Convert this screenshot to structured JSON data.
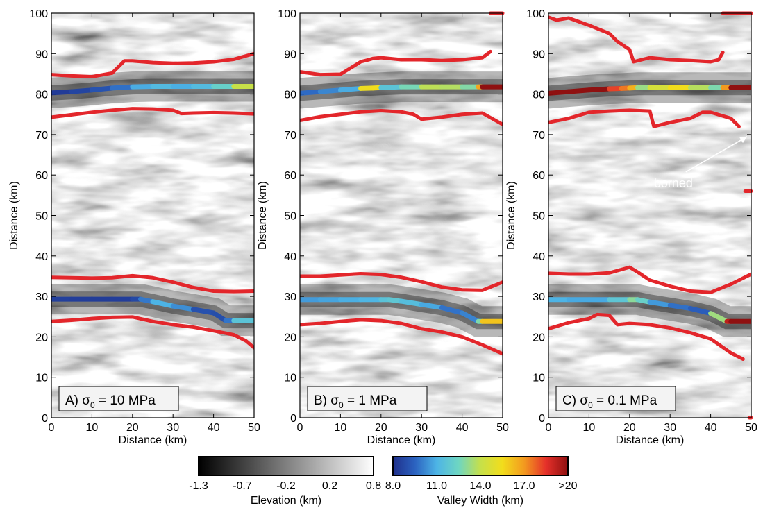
{
  "chart_data": [
    {
      "type": "heatmap",
      "panel_label": "A) σ",
      "panel_sub": "0",
      "panel_value": " = 10 MPa",
      "xlabel": "Distance (km)",
      "ylabel": "Distance (km)",
      "xlim": [
        0,
        50
      ],
      "ylim": [
        0,
        100
      ],
      "xticks": [
        "0",
        "10",
        "20",
        "30",
        "40",
        "50"
      ],
      "yticks": [
        "0",
        "10",
        "20",
        "30",
        "40",
        "50",
        "60",
        "70",
        "80",
        "90",
        "100"
      ],
      "valley_centerlines": [
        {
          "x": [
            0,
            5,
            10,
            15,
            20,
            25,
            30,
            35,
            40,
            45,
            50
          ],
          "y": [
            80.3,
            80.6,
            81.0,
            81.5,
            81.8,
            81.9,
            81.9,
            81.9,
            81.9,
            81.9,
            81.9
          ],
          "width_km": [
            8.2,
            8.5,
            8.8,
            9.3,
            10.2,
            11.5,
            11.0,
            10.8,
            11.8,
            12.6,
            15.5
          ]
        },
        {
          "x": [
            0,
            5,
            10,
            15,
            20,
            22,
            25,
            30,
            35,
            40,
            43,
            45,
            50
          ],
          "y": [
            29.3,
            29.3,
            29.3,
            29.3,
            29.3,
            29.3,
            28.7,
            27.6,
            26.8,
            25.9,
            24.0,
            24.0,
            24.0
          ],
          "width_km": [
            8.5,
            8.5,
            8.4,
            8.4,
            8.5,
            9.0,
            10.8,
            11.2,
            9.4,
            8.6,
            9.2,
            10.5,
            12.8
          ]
        }
      ],
      "divides": [
        {
          "x": [
            0,
            5,
            10,
            15,
            17,
            18,
            20,
            25,
            30,
            35,
            40,
            45,
            50
          ],
          "y": [
            84.8,
            84.5,
            84.3,
            85.2,
            87.2,
            88.2,
            88.2,
            87.8,
            87.6,
            87.7,
            88.0,
            88.6,
            90.0
          ]
        },
        {
          "x": [
            0,
            5,
            10,
            15,
            20,
            25,
            30,
            32,
            35,
            40,
            45,
            50
          ],
          "y": [
            74.3,
            74.9,
            75.5,
            76.0,
            76.4,
            76.3,
            76.0,
            75.2,
            75.3,
            75.4,
            75.3,
            75.1
          ]
        },
        {
          "x": [
            0,
            5,
            10,
            15,
            20,
            25,
            30,
            35,
            40,
            45,
            50
          ],
          "y": [
            34.7,
            34.6,
            34.5,
            34.6,
            35.1,
            34.6,
            33.5,
            32.2,
            31.3,
            31.2,
            31.3
          ]
        },
        {
          "x": [
            0,
            5,
            10,
            15,
            20,
            25,
            30,
            35,
            40,
            45,
            48,
            50
          ],
          "y": [
            23.8,
            24.1,
            24.5,
            24.8,
            24.9,
            23.8,
            23.0,
            22.4,
            21.5,
            20.5,
            19.0,
            17.3
          ]
        }
      ]
    },
    {
      "type": "heatmap",
      "panel_label": "B) σ",
      "panel_sub": "0",
      "panel_value": " = 1 MPa",
      "xlabel": "Distance (km)",
      "ylabel": "Distance (km)",
      "xlim": [
        0,
        50
      ],
      "ylim": [
        0,
        100
      ],
      "xticks": [
        "0",
        "10",
        "20",
        "30",
        "40",
        "50"
      ],
      "yticks": [
        "0",
        "10",
        "20",
        "30",
        "40",
        "50",
        "60",
        "70",
        "80",
        "90",
        "100"
      ],
      "valley_centerlines": [
        {
          "x": [
            0,
            5,
            10,
            15,
            18,
            20,
            25,
            30,
            35,
            40,
            44,
            45,
            50
          ],
          "y": [
            80.2,
            80.6,
            81.0,
            81.4,
            81.5,
            81.6,
            81.8,
            81.8,
            81.8,
            81.8,
            81.8,
            81.8,
            81.8
          ],
          "width_km": [
            9.5,
            9.8,
            10.5,
            11.2,
            19.5,
            11.5,
            11.8,
            13.5,
            14.2,
            13.2,
            12.5,
            21.0,
            22.0
          ]
        },
        {
          "x": [
            0,
            5,
            10,
            15,
            20,
            22,
            25,
            30,
            35,
            40,
            44,
            45,
            50
          ],
          "y": [
            29.2,
            29.2,
            29.2,
            29.2,
            29.2,
            29.2,
            28.8,
            28.0,
            27.2,
            25.9,
            23.8,
            23.8,
            23.8
          ],
          "width_km": [
            10.5,
            10.6,
            10.8,
            11.0,
            11.2,
            12.0,
            11.6,
            11.2,
            10.4,
            9.2,
            11.0,
            14.6,
            17.5
          ]
        }
      ],
      "divides": [
        {
          "x": [
            0,
            5,
            10,
            15,
            17,
            18,
            20,
            25,
            30,
            35,
            40,
            45,
            47
          ],
          "y": [
            85.5,
            84.8,
            84.9,
            88.0,
            88.5,
            88.8,
            89.0,
            88.5,
            88.5,
            88.3,
            88.5,
            89.0,
            90.5
          ]
        },
        {
          "x": [
            0,
            5,
            10,
            15,
            20,
            25,
            28,
            30,
            35,
            40,
            45,
            50
          ],
          "y": [
            73.5,
            74.4,
            75.0,
            75.6,
            75.9,
            75.6,
            75.0,
            73.8,
            74.3,
            75.0,
            75.3,
            72.5
          ]
        },
        {
          "x": [
            0,
            5,
            10,
            15,
            20,
            25,
            30,
            35,
            40,
            45,
            50
          ],
          "y": [
            35.0,
            35.0,
            35.3,
            35.6,
            35.4,
            34.7,
            33.6,
            32.3,
            31.6,
            31.5,
            33.5
          ]
        },
        {
          "x": [
            0,
            5,
            10,
            15,
            20,
            25,
            30,
            35,
            40,
            45,
            50
          ],
          "y": [
            23.0,
            23.3,
            23.8,
            24.2,
            24.0,
            23.3,
            22.0,
            21.2,
            20.0,
            18.0,
            15.8
          ]
        }
      ],
      "markers": [
        {
          "x": [
            47,
            50
          ],
          "y": [
            100,
            100
          ]
        }
      ]
    },
    {
      "type": "heatmap",
      "panel_label": "C) σ",
      "panel_sub": "0",
      "panel_value": " = 0.1 MPa",
      "xlabel": "Distance (km)",
      "ylabel": "Distance (km)",
      "xlim": [
        0,
        50
      ],
      "ylim": [
        0,
        100
      ],
      "xticks": [
        "0",
        "10",
        "20",
        "30",
        "40",
        "50"
      ],
      "yticks": [
        "0",
        "10",
        "20",
        "30",
        "40",
        "50",
        "60",
        "70",
        "80",
        "90",
        "100"
      ],
      "annotation": {
        "text": "borned",
        "xy": [
          49,
          69.5
        ],
        "xytext": [
          26,
          58
        ]
      },
      "valley_centerlines": [
        {
          "x": [
            0,
            5,
            10,
            15,
            18,
            20,
            22,
            25,
            30,
            35,
            40,
            43,
            45,
            50
          ],
          "y": [
            80.2,
            80.6,
            81.0,
            81.3,
            81.4,
            81.5,
            81.6,
            81.6,
            81.6,
            81.6,
            81.6,
            81.6,
            81.6,
            81.6
          ],
          "width_km": [
            21.0,
            21.0,
            21.0,
            21.0,
            15.5,
            19.5,
            13.5,
            13.0,
            16.0,
            15.0,
            12.5,
            13.0,
            21.0,
            21.0
          ]
        },
        {
          "x": [
            0,
            5,
            10,
            15,
            20,
            22,
            25,
            30,
            35,
            40,
            44,
            45,
            50
          ],
          "y": [
            29.2,
            29.2,
            29.2,
            29.2,
            29.2,
            29.2,
            28.6,
            27.8,
            27.0,
            25.8,
            23.8,
            23.8,
            23.8
          ],
          "width_km": [
            11.0,
            11.0,
            10.6,
            11.0,
            12.5,
            13.5,
            11.0,
            10.0,
            9.5,
            9.2,
            17.5,
            21.0,
            21.0
          ]
        }
      ],
      "divides": [
        {
          "x": [
            0,
            2,
            5,
            10,
            15,
            17,
            20,
            21,
            25,
            30,
            35,
            40,
            42,
            43
          ],
          "y": [
            99.0,
            98.3,
            98.8,
            97.0,
            95.0,
            93.0,
            91.0,
            88.0,
            89.0,
            88.5,
            88.3,
            88.0,
            88.5,
            90.3
          ]
        },
        {
          "x": [
            0,
            5,
            10,
            15,
            20,
            25,
            26,
            30,
            35,
            38,
            40,
            45,
            47
          ],
          "y": [
            73.0,
            74.0,
            75.5,
            75.8,
            76.0,
            75.8,
            72.0,
            73.0,
            74.0,
            75.5,
            75.5,
            74.0,
            72.0
          ]
        },
        {
          "x": [
            0,
            5,
            10,
            15,
            20,
            22,
            25,
            30,
            35,
            40,
            45,
            50
          ],
          "y": [
            35.7,
            35.5,
            35.5,
            35.8,
            37.2,
            36.0,
            34.0,
            32.5,
            31.3,
            31.0,
            33.0,
            35.5
          ]
        },
        {
          "x": [
            0,
            5,
            10,
            12,
            15,
            17,
            20,
            25,
            30,
            35,
            40,
            45,
            48
          ],
          "y": [
            22.0,
            23.5,
            24.5,
            25.5,
            25.3,
            23.0,
            23.3,
            23.0,
            22.2,
            21.0,
            19.5,
            16.0,
            14.5
          ]
        }
      ],
      "markers": [
        {
          "x": [
            43,
            50
          ],
          "y": [
            100,
            100
          ]
        },
        {
          "x": [
            48.5,
            50
          ],
          "y": [
            56,
            56
          ]
        },
        {
          "x": [
            49.5,
            50
          ],
          "y": [
            0,
            0
          ]
        }
      ]
    }
  ],
  "colorbars": [
    {
      "label": "Elevation (km)",
      "ticks": [
        "-1.3",
        "-0.7",
        "-0.2",
        "0.2",
        "0.8"
      ],
      "colors": [
        "#000000",
        "#ffffff"
      ]
    },
    {
      "label": "Valley Width (km)",
      "ticks": [
        "8.0",
        "11.0",
        "14.0",
        "17.0",
        ">20"
      ],
      "colors": [
        "#1f2f8a",
        "#2b62c0",
        "#4db4e6",
        "#6ed6c2",
        "#c6e04a",
        "#f2dd1c",
        "#f39a1f",
        "#e5302a",
        "#8f1010"
      ]
    }
  ],
  "colors": {
    "divide": "#e3262b"
  }
}
